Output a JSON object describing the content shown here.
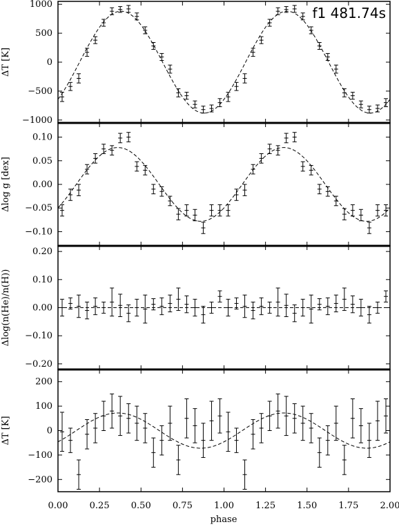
{
  "chart_data": {
    "type": "scatter",
    "xlabel": "phase",
    "xlim": [
      0.0,
      2.0
    ],
    "xticks": [
      0.0,
      0.25,
      0.5,
      0.75,
      1.0,
      1.25,
      1.5,
      1.75,
      2.0
    ],
    "xtick_labels": [
      "0.00",
      "0.25",
      "0.50",
      "0.75",
      "1.00",
      "1.25",
      "1.50",
      "1.75",
      "2.00"
    ],
    "panels": [
      {
        "ylabel": "ΔT [K]",
        "annotation": "f1 481.74s",
        "ylim": [
          -1050,
          1050
        ],
        "yticks": [
          -1000,
          -500,
          0,
          500,
          1000
        ],
        "ytick_labels": [
          "−1000",
          "−500",
          "0",
          "500",
          "1000"
        ],
        "model": {
          "amplitude": 880,
          "peak_phase": 0.38,
          "offset": 0
        },
        "points": {
          "phase": [
            0.025,
            0.075,
            0.125,
            0.175,
            0.225,
            0.275,
            0.325,
            0.375,
            0.425,
            0.475,
            0.525,
            0.575,
            0.625,
            0.675,
            0.725,
            0.775,
            0.825,
            0.875,
            0.925,
            0.975
          ],
          "value": [
            -600,
            -420,
            -280,
            170,
            380,
            680,
            880,
            910,
            920,
            790,
            550,
            280,
            90,
            -120,
            -530,
            -580,
            -730,
            -820,
            -800,
            -700
          ],
          "error": [
            80,
            70,
            80,
            70,
            60,
            60,
            60,
            50,
            60,
            60,
            60,
            60,
            60,
            70,
            70,
            60,
            60,
            60,
            60,
            70
          ]
        }
      },
      {
        "ylabel": "Δlog g [dex]",
        "ylim": [
          -0.13,
          0.13
        ],
        "yticks": [
          -0.1,
          -0.05,
          0.0,
          0.05,
          0.1
        ],
        "ytick_labels": [
          "−0.10",
          "−0.05",
          "0.00",
          "0.05",
          "0.10"
        ],
        "model": {
          "amplitude": 0.078,
          "peak_phase": 0.36,
          "offset": 0
        },
        "points": {
          "phase": [
            0.025,
            0.075,
            0.125,
            0.175,
            0.225,
            0.275,
            0.325,
            0.375,
            0.425,
            0.475,
            0.525,
            0.575,
            0.625,
            0.675,
            0.725,
            0.775,
            0.825,
            0.875,
            0.925,
            0.975
          ],
          "value": [
            -0.055,
            -0.022,
            -0.012,
            0.032,
            0.055,
            0.075,
            0.072,
            0.098,
            0.1,
            0.038,
            0.03,
            -0.01,
            -0.015,
            -0.035,
            -0.063,
            -0.055,
            -0.065,
            -0.092,
            -0.055,
            -0.055
          ],
          "error": [
            0.012,
            0.012,
            0.012,
            0.01,
            0.01,
            0.01,
            0.01,
            0.01,
            0.01,
            0.01,
            0.01,
            0.01,
            0.01,
            0.01,
            0.012,
            0.012,
            0.012,
            0.012,
            0.012,
            0.012
          ]
        }
      },
      {
        "ylabel": "Δlog(n(He)/n(H))",
        "ylim": [
          -0.22,
          0.22
        ],
        "yticks": [
          -0.2,
          -0.1,
          0.0,
          0.1,
          0.2
        ],
        "ytick_labels": [
          "−0.20",
          "−0.10",
          "0.00",
          "0.10",
          "0.20"
        ],
        "model": {
          "amplitude": 0.0,
          "peak_phase": 0.0,
          "offset": 0
        },
        "points": {
          "phase": [
            0.025,
            0.075,
            0.125,
            0.175,
            0.225,
            0.275,
            0.325,
            0.375,
            0.425,
            0.475,
            0.525,
            0.575,
            0.625,
            0.675,
            0.725,
            0.775,
            0.825,
            0.875,
            0.925,
            0.975
          ],
          "value": [
            0.0,
            0.015,
            0.005,
            -0.01,
            0.005,
            0.0,
            0.02,
            0.008,
            -0.02,
            0.0,
            -0.005,
            0.012,
            0.005,
            0.015,
            0.03,
            0.012,
            0.0,
            -0.025,
            0.0,
            0.04
          ],
          "error": [
            0.03,
            0.02,
            0.04,
            0.03,
            0.03,
            0.02,
            0.05,
            0.04,
            0.03,
            0.03,
            0.05,
            0.02,
            0.03,
            0.03,
            0.04,
            0.03,
            0.03,
            0.03,
            0.02,
            0.02
          ]
        }
      },
      {
        "ylabel": "ΔT [K]",
        "ylim": [
          -250,
          250
        ],
        "yticks": [
          -200,
          -100,
          0,
          100,
          200
        ],
        "ytick_labels": [
          "−200",
          "−100",
          "0",
          "100",
          "200"
        ],
        "model": {
          "amplitude": 72,
          "peak_phase": 0.36,
          "offset": 0
        },
        "points": {
          "phase": [
            0.025,
            0.075,
            0.125,
            0.175,
            0.225,
            0.275,
            0.325,
            0.375,
            0.425,
            0.475,
            0.525,
            0.575,
            0.625,
            0.675,
            0.725,
            0.775,
            0.825,
            0.875,
            0.925,
            0.975
          ],
          "value": [
            -5,
            -40,
            -180,
            -15,
            10,
            60,
            80,
            60,
            50,
            30,
            10,
            -90,
            -40,
            30,
            -120,
            50,
            20,
            -40,
            40,
            60
          ],
          "error": [
            80,
            50,
            60,
            60,
            60,
            60,
            70,
            80,
            60,
            70,
            60,
            60,
            60,
            70,
            60,
            80,
            70,
            70,
            80,
            70
          ]
        }
      }
    ]
  }
}
